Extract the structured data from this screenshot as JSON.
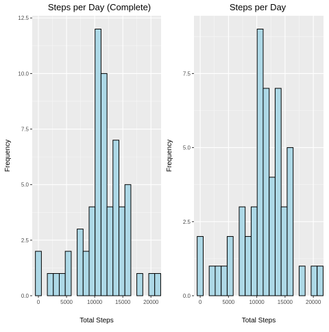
{
  "chart_data": [
    {
      "type": "bar",
      "title": "Steps per Day (Complete)",
      "xlabel": "Total Steps",
      "ylabel": "Frequency",
      "xlim": [
        -1100,
        21800
      ],
      "ylim": [
        0,
        12.6
      ],
      "x_ticks": [
        0,
        5000,
        10000,
        15000,
        20000
      ],
      "x_tick_labels": [
        "0",
        "5000",
        "10000",
        "15000",
        "20000"
      ],
      "y_ticks": [
        0,
        2.5,
        5,
        7.5,
        10,
        12.5
      ],
      "y_tick_labels": [
        "0.0",
        "2.5",
        "5.0",
        "7.5",
        "10.0",
        "12.5"
      ],
      "bin_width": 1060,
      "bin_centers": [
        0,
        1060,
        2120,
        3180,
        4240,
        5300,
        6360,
        7420,
        8480,
        9540,
        10600,
        11660,
        12720,
        13780,
        14840,
        15900,
        16960,
        18020,
        19080,
        20140,
        21200
      ],
      "values": [
        2,
        0,
        1,
        1,
        1,
        2,
        0,
        3,
        2,
        4,
        12,
        10,
        4,
        7,
        4,
        5,
        0,
        1,
        0,
        1,
        1
      ],
      "grid": true,
      "fill_color": "#add8e6",
      "edge_color": "#000000",
      "panel_color": "#ebebeb"
    },
    {
      "type": "bar",
      "title": "Steps per Day",
      "xlabel": "Total Steps",
      "ylabel": "Frequency",
      "xlim": [
        -1100,
        21800
      ],
      "ylim": [
        0,
        9.45
      ],
      "x_ticks": [
        0,
        5000,
        10000,
        15000,
        20000
      ],
      "x_tick_labels": [
        "0",
        "5000",
        "10000",
        "15000",
        "20000"
      ],
      "y_ticks": [
        0,
        2.5,
        5,
        7.5
      ],
      "y_tick_labels": [
        "0.0",
        "2.5",
        "5.0",
        "7.5"
      ],
      "bin_width": 1060,
      "bin_centers": [
        0,
        1060,
        2120,
        3180,
        4240,
        5300,
        6360,
        7420,
        8480,
        9540,
        10600,
        11660,
        12720,
        13780,
        14840,
        15900,
        16960,
        18020,
        19080,
        20140,
        21200
      ],
      "values": [
        2,
        0,
        1,
        1,
        1,
        2,
        0,
        3,
        2,
        3,
        9,
        7,
        4,
        7,
        3,
        5,
        0,
        1,
        0,
        1,
        1
      ],
      "grid": true,
      "fill_color": "#add8e6",
      "edge_color": "#000000",
      "panel_color": "#ebebeb"
    }
  ]
}
